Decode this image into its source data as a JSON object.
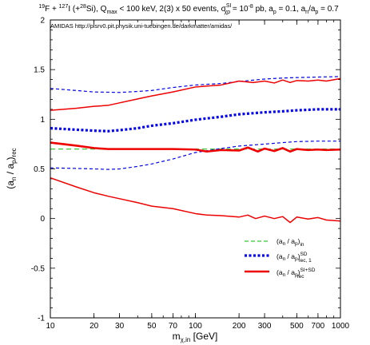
{
  "chart_data": {
    "type": "line",
    "title_parts": {
      "a": "19",
      "b": "F + ",
      "c": "127",
      "d": "I (+",
      "e": "28",
      "f": "Si), Q",
      "g": "max",
      "h": " < 100 keV, 2(3) x 50 events, σ",
      "i": "SI",
      "j": "χp",
      "k": " = 10",
      "l": "-8",
      "m": " pb, a",
      "n": "p",
      "o": " = 0.1, a",
      "p": "n",
      "q": "/a",
      "r": "p",
      "s": " = 0.7"
    },
    "annotation": "AMIDAS   http://pisrv0.pit.physik.uni-tuebingen.de/darkmatter/amidas/",
    "xlabel_parts": {
      "main": "m",
      "sub": "χ,in",
      "tail": " [GeV]"
    },
    "ylabel_parts": {
      "open": "(a",
      "sub1": "n",
      "mid": " / a",
      "sub2": "p",
      "close": ")",
      "sub3": "rec"
    },
    "x_scale": "log",
    "xlim": [
      10,
      1000
    ],
    "ylim": [
      -1,
      2
    ],
    "x_ticks": [
      10,
      20,
      30,
      50,
      70,
      100,
      200,
      300,
      500,
      700,
      1000
    ],
    "x_tick_labels": [
      "10",
      "20",
      "30",
      "50",
      "70",
      "100",
      "200",
      "300",
      "500",
      "700",
      "1000"
    ],
    "y_ticks": [
      -1,
      -0.5,
      0,
      0.5,
      1,
      1.5,
      2
    ],
    "y_tick_labels": [
      "-1",
      "-0.5",
      "0",
      "0.5",
      "1",
      "1.5",
      "2"
    ],
    "legend_position": "bottom-right",
    "legend": [
      {
        "series": "input",
        "parts": [
          "(a",
          "n",
          " / a",
          "p",
          ")",
          "in",
          ""
        ]
      },
      {
        "series": "sd",
        "parts": [
          "(a",
          "n",
          " / a",
          "p",
          ")",
          "rec, 1",
          "SD"
        ]
      },
      {
        "series": "sisd",
        "parts": [
          "(a",
          "n",
          " / a",
          "p",
          ")",
          "rec",
          "SI+SD"
        ]
      }
    ],
    "series": [
      {
        "id": "input",
        "color": "#33cc33",
        "style": "dashed",
        "points": [
          [
            10,
            0.7
          ],
          [
            1000,
            0.7
          ]
        ]
      },
      {
        "id": "sd",
        "color": "#0000ee",
        "style": "dotted-thick",
        "points": [
          [
            10,
            0.91
          ],
          [
            15,
            0.895
          ],
          [
            20,
            0.885
          ],
          [
            25,
            0.88
          ],
          [
            30,
            0.89
          ],
          [
            40,
            0.91
          ],
          [
            50,
            0.935
          ],
          [
            70,
            0.96
          ],
          [
            100,
            0.995
          ],
          [
            150,
            1.025
          ],
          [
            200,
            1.05
          ],
          [
            300,
            1.07
          ],
          [
            400,
            1.08
          ],
          [
            500,
            1.09
          ],
          [
            700,
            1.1
          ],
          [
            1000,
            1.1
          ]
        ]
      },
      {
        "id": "sd_upper",
        "color": "#0000ee",
        "style": "dashed-thin",
        "points": [
          [
            10,
            1.31
          ],
          [
            15,
            1.29
          ],
          [
            20,
            1.275
          ],
          [
            30,
            1.27
          ],
          [
            40,
            1.28
          ],
          [
            50,
            1.29
          ],
          [
            70,
            1.32
          ],
          [
            100,
            1.345
          ],
          [
            150,
            1.36
          ],
          [
            200,
            1.38
          ],
          [
            300,
            1.405
          ],
          [
            400,
            1.415
          ],
          [
            500,
            1.42
          ],
          [
            700,
            1.425
          ],
          [
            1000,
            1.43
          ]
        ]
      },
      {
        "id": "sd_lower",
        "color": "#0000ee",
        "style": "dashed-thin",
        "points": [
          [
            10,
            0.51
          ],
          [
            15,
            0.505
          ],
          [
            20,
            0.5
          ],
          [
            25,
            0.495
          ],
          [
            30,
            0.5
          ],
          [
            40,
            0.525
          ],
          [
            50,
            0.55
          ],
          [
            70,
            0.6
          ],
          [
            100,
            0.665
          ],
          [
            150,
            0.705
          ],
          [
            200,
            0.73
          ],
          [
            300,
            0.75
          ],
          [
            400,
            0.765
          ],
          [
            500,
            0.775
          ],
          [
            700,
            0.78
          ],
          [
            1000,
            0.78
          ]
        ]
      },
      {
        "id": "sisd",
        "color": "#ee0000",
        "style": "solid-thick",
        "points": [
          [
            10,
            0.765
          ],
          [
            15,
            0.735
          ],
          [
            20,
            0.71
          ],
          [
            25,
            0.7
          ],
          [
            30,
            0.7
          ],
          [
            50,
            0.7
          ],
          [
            70,
            0.7
          ],
          [
            100,
            0.695
          ],
          [
            120,
            0.675
          ],
          [
            150,
            0.69
          ],
          [
            200,
            0.685
          ],
          [
            230,
            0.715
          ],
          [
            270,
            0.675
          ],
          [
            300,
            0.705
          ],
          [
            350,
            0.68
          ],
          [
            400,
            0.71
          ],
          [
            450,
            0.675
          ],
          [
            500,
            0.7
          ],
          [
            600,
            0.69
          ],
          [
            700,
            0.695
          ],
          [
            800,
            0.69
          ],
          [
            1000,
            0.695
          ]
        ]
      },
      {
        "id": "sisd_upper",
        "color": "#ee0000",
        "style": "solid-thin",
        "points": [
          [
            10,
            1.09
          ],
          [
            15,
            1.11
          ],
          [
            20,
            1.13
          ],
          [
            25,
            1.14
          ],
          [
            30,
            1.165
          ],
          [
            40,
            1.205
          ],
          [
            50,
            1.235
          ],
          [
            70,
            1.275
          ],
          [
            100,
            1.325
          ],
          [
            150,
            1.345
          ],
          [
            200,
            1.385
          ],
          [
            250,
            1.37
          ],
          [
            300,
            1.385
          ],
          [
            350,
            1.365
          ],
          [
            400,
            1.395
          ],
          [
            450,
            1.37
          ],
          [
            500,
            1.39
          ],
          [
            600,
            1.385
          ],
          [
            700,
            1.395
          ],
          [
            800,
            1.385
          ],
          [
            1000,
            1.41
          ]
        ]
      },
      {
        "id": "sisd_lower",
        "color": "#ee0000",
        "style": "solid-thin",
        "points": [
          [
            10,
            0.41
          ],
          [
            15,
            0.32
          ],
          [
            20,
            0.26
          ],
          [
            25,
            0.225
          ],
          [
            30,
            0.2
          ],
          [
            40,
            0.16
          ],
          [
            50,
            0.125
          ],
          [
            70,
            0.1
          ],
          [
            100,
            0.05
          ],
          [
            120,
            0.035
          ],
          [
            150,
            0.03
          ],
          [
            200,
            0.015
          ],
          [
            230,
            0.035
          ],
          [
            260,
            0.0
          ],
          [
            300,
            0.025
          ],
          [
            350,
            0.0
          ],
          [
            400,
            0.02
          ],
          [
            450,
            -0.04
          ],
          [
            500,
            0.015
          ],
          [
            600,
            -0.005
          ],
          [
            700,
            0.01
          ],
          [
            800,
            -0.015
          ],
          [
            1000,
            -0.025
          ]
        ]
      }
    ]
  }
}
